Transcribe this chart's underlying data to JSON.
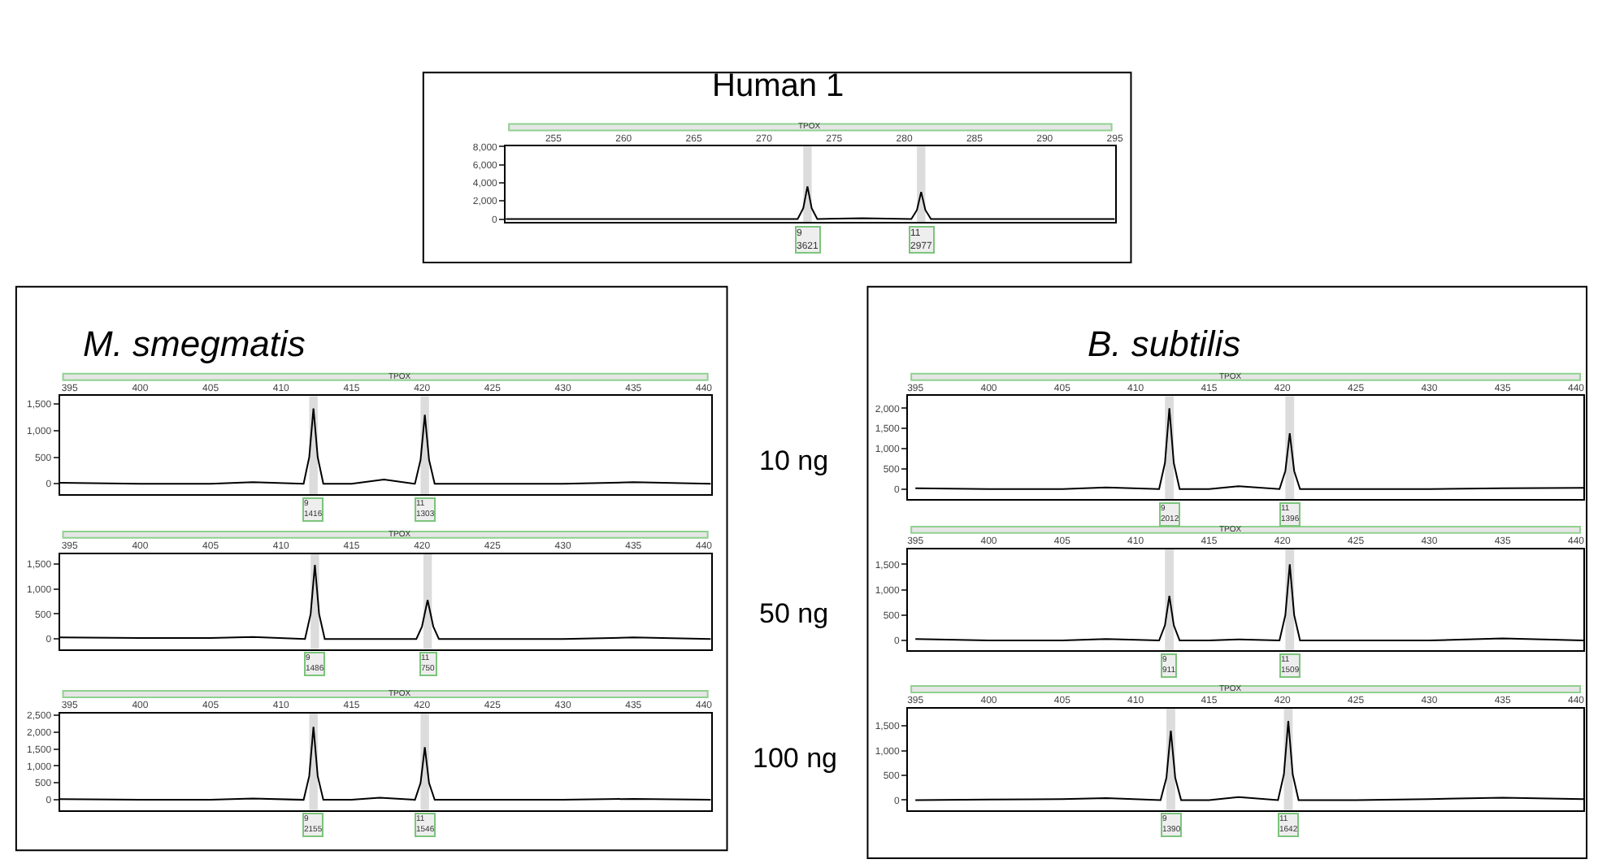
{
  "chart_data": [
    {
      "type": "line",
      "title": "Human 1",
      "x": [
        251.6,
        260,
        270,
        272.4,
        272.8,
        273.1,
        273.4,
        273.8,
        277,
        280.5,
        280.9,
        281.2,
        281.5,
        281.9,
        290,
        295
      ],
      "series": [
        {
          "color": "#000000",
          "values": [
            0,
            0,
            0,
            0,
            1200,
            3600,
            1200,
            0,
            100,
            0,
            1000,
            3000,
            1000,
            0,
            0,
            0
          ]
        }
      ],
      "xlim": [
        251.6,
        295
      ],
      "xticks": [
        255,
        260,
        265,
        270,
        275,
        280,
        285,
        290,
        295
      ],
      "ylim": [
        -350,
        8000
      ],
      "yticks": [
        {
          "value": 0,
          "label": "0"
        },
        {
          "value": 2000,
          "label": "2,000"
        },
        {
          "value": 4000,
          "label": "4,000"
        },
        {
          "value": 6000,
          "label": "6,000"
        },
        {
          "value": 8000,
          "label": "8,000"
        }
      ],
      "annotations": [
        "TPOX",
        {
          "text": "9\n3621",
          "x": 273.1
        },
        {
          "text": "11\n2977",
          "x": 281.2
        }
      ],
      "bands": [
        {
          "axis": "x",
          "from": 272.8,
          "to": 273.4,
          "color": "#dcdcdc"
        },
        {
          "axis": "x",
          "from": 280.9,
          "to": 281.5,
          "color": "#dcdcdc"
        }
      ],
      "grid": false
    },
    {
      "type": "line",
      "title": "M. smegmatis",
      "x": [
        394.3,
        400,
        405,
        408,
        411.6,
        412.0,
        412.3,
        412.6,
        413.0,
        415,
        417.3,
        419.5,
        419.9,
        420.2,
        420.5,
        420.9,
        425,
        430,
        435,
        440.5
      ],
      "series": [
        {
          "color": "#000000",
          "values": [
            20,
            0,
            0,
            30,
            0,
            500,
            1420,
            500,
            0,
            0,
            80,
            0,
            450,
            1300,
            450,
            0,
            0,
            0,
            30,
            0
          ]
        }
      ],
      "xlim": [
        394.3,
        440.5
      ],
      "xticks": [
        395,
        400,
        405,
        410,
        415,
        420,
        425,
        430,
        435,
        440
      ],
      "ylim": [
        -200,
        1650
      ],
      "yticks": [
        {
          "value": 0,
          "label": "0"
        },
        {
          "value": 500,
          "label": "500"
        },
        {
          "value": 1000,
          "label": "1,000"
        },
        {
          "value": 1500,
          "label": "1,500"
        }
      ],
      "annotations": [
        "TPOX",
        "10 ng",
        {
          "text": "9\n1416",
          "x": 412.3
        },
        {
          "text": "11\n1303",
          "x": 420.2
        }
      ],
      "bands": [
        {
          "axis": "x",
          "from": 412.0,
          "to": 412.6,
          "color": "#dcdcdc"
        },
        {
          "axis": "x",
          "from": 419.9,
          "to": 420.5,
          "color": "#dcdcdc"
        }
      ],
      "grid": false
    },
    {
      "type": "line",
      "x": [
        394.3,
        400,
        405,
        408,
        411.7,
        412.1,
        412.4,
        412.7,
        413.1,
        415,
        417,
        419.6,
        420.0,
        420.4,
        420.8,
        421.2,
        425,
        430,
        435,
        440.5
      ],
      "series": [
        {
          "color": "#000000",
          "values": [
            30,
            20,
            20,
            40,
            0,
            500,
            1480,
            500,
            0,
            0,
            0,
            0,
            250,
            780,
            250,
            0,
            0,
            0,
            30,
            0
          ]
        }
      ],
      "xlim": [
        394.3,
        440.5
      ],
      "xticks": [
        395,
        400,
        405,
        410,
        415,
        420,
        425,
        430,
        435,
        440
      ],
      "ylim": [
        -200,
        1700
      ],
      "yticks": [
        {
          "value": 0,
          "label": "0"
        },
        {
          "value": 500,
          "label": "500"
        },
        {
          "value": 1000,
          "label": "1,000"
        },
        {
          "value": 1500,
          "label": "1,500"
        }
      ],
      "annotations": [
        "TPOX",
        "50 ng",
        {
          "text": "9\n1486",
          "x": 412.4
        },
        {
          "text": "11\n750",
          "x": 420.4
        }
      ],
      "bands": [
        {
          "axis": "x",
          "from": 412.1,
          "to": 412.7,
          "color": "#dcdcdc"
        },
        {
          "axis": "x",
          "from": 420.1,
          "to": 420.7,
          "color": "#dcdcdc"
        }
      ],
      "grid": false
    },
    {
      "type": "line",
      "x": [
        394.3,
        400,
        405,
        408,
        411.6,
        412.0,
        412.3,
        412.6,
        413.0,
        415,
        417,
        419.5,
        419.9,
        420.2,
        420.5,
        420.9,
        425,
        430,
        435,
        440.5
      ],
      "series": [
        {
          "color": "#000000",
          "values": [
            20,
            0,
            0,
            40,
            0,
            700,
            2150,
            700,
            0,
            0,
            60,
            0,
            500,
            1550,
            500,
            0,
            0,
            0,
            30,
            0
          ]
        }
      ],
      "xlim": [
        394.3,
        440.5
      ],
      "xticks": [
        395,
        400,
        405,
        410,
        415,
        420,
        425,
        430,
        435,
        440
      ],
      "ylim": [
        -300,
        2550
      ],
      "yticks": [
        {
          "value": 0,
          "label": "0"
        },
        {
          "value": 500,
          "label": "500"
        },
        {
          "value": 1000,
          "label": "1,000"
        },
        {
          "value": 1500,
          "label": "1,500"
        },
        {
          "value": 2000,
          "label": "2,000"
        },
        {
          "value": 2500,
          "label": "2,500"
        }
      ],
      "annotations": [
        "TPOX",
        "100 ng",
        {
          "text": "9\n2155",
          "x": 412.3
        },
        {
          "text": "11\n1546",
          "x": 420.2
        }
      ],
      "bands": [
        {
          "axis": "x",
          "from": 412.0,
          "to": 412.6,
          "color": "#dcdcdc"
        },
        {
          "axis": "x",
          "from": 419.9,
          "to": 420.5,
          "color": "#dcdcdc"
        }
      ],
      "grid": false
    },
    {
      "type": "line",
      "title": "B. subtilis",
      "x": [
        395,
        400,
        405,
        408,
        411.6,
        412.0,
        412.3,
        412.6,
        413.0,
        415,
        417,
        419.8,
        420.2,
        420.5,
        420.8,
        421.2,
        425,
        430,
        435,
        440.5
      ],
      "series": [
        {
          "color": "#000000",
          "values": [
            20,
            0,
            0,
            40,
            0,
            650,
            2000,
            650,
            0,
            0,
            70,
            0,
            450,
            1380,
            450,
            0,
            0,
            0,
            20,
            30
          ]
        }
      ],
      "xlim": [
        394.5,
        440.5
      ],
      "xticks": [
        395,
        400,
        405,
        410,
        415,
        420,
        425,
        430,
        435,
        440
      ],
      "ylim": [
        -250,
        2300
      ],
      "yticks": [
        {
          "value": 0,
          "label": "0"
        },
        {
          "value": 500,
          "label": "500"
        },
        {
          "value": 1000,
          "label": "1,000"
        },
        {
          "value": 1500,
          "label": "1,500"
        },
        {
          "value": 2000,
          "label": "2,000"
        }
      ],
      "annotations": [
        "TPOX",
        {
          "text": "9\n2012",
          "x": 412.3
        },
        {
          "text": "11\n1396",
          "x": 420.5
        }
      ],
      "bands": [
        {
          "axis": "x",
          "from": 412.0,
          "to": 412.6,
          "color": "#dcdcdc"
        },
        {
          "axis": "x",
          "from": 420.2,
          "to": 420.8,
          "color": "#dcdcdc"
        }
      ],
      "grid": false
    },
    {
      "type": "line",
      "x": [
        395,
        400,
        405,
        408,
        411.6,
        412.0,
        412.3,
        412.6,
        413.0,
        415,
        417,
        419.8,
        420.2,
        420.5,
        420.8,
        421.2,
        425,
        430,
        435,
        440.5
      ],
      "series": [
        {
          "color": "#000000",
          "values": [
            30,
            0,
            0,
            30,
            0,
            300,
            880,
            300,
            0,
            0,
            20,
            0,
            500,
            1500,
            500,
            0,
            0,
            0,
            40,
            0
          ]
        }
      ],
      "xlim": [
        394.5,
        440.5
      ],
      "xticks": [
        395,
        400,
        405,
        410,
        415,
        420,
        425,
        430,
        435,
        440
      ],
      "ylim": [
        -200,
        1800
      ],
      "yticks": [
        {
          "value": 0,
          "label": "0"
        },
        {
          "value": 500,
          "label": "500"
        },
        {
          "value": 1000,
          "label": "1,000"
        },
        {
          "value": 1500,
          "label": "1,500"
        }
      ],
      "annotations": [
        "TPOX",
        {
          "text": "9\n911",
          "x": 412.3
        },
        {
          "text": "11\n1509",
          "x": 420.5
        }
      ],
      "bands": [
        {
          "axis": "x",
          "from": 412.0,
          "to": 412.6,
          "color": "#dcdcdc"
        },
        {
          "axis": "x",
          "from": 420.2,
          "to": 420.8,
          "color": "#dcdcdc"
        }
      ],
      "grid": false
    },
    {
      "type": "line",
      "x": [
        395,
        400,
        405,
        408,
        411.7,
        412.1,
        412.4,
        412.7,
        413.1,
        415,
        417,
        419.7,
        420.1,
        420.4,
        420.7,
        421.1,
        425,
        430,
        435,
        440.5
      ],
      "series": [
        {
          "color": "#000000",
          "values": [
            0,
            10,
            20,
            40,
            0,
            450,
            1400,
            450,
            0,
            0,
            60,
            0,
            520,
            1600,
            520,
            0,
            0,
            20,
            50,
            20
          ]
        }
      ],
      "xlim": [
        394.5,
        440.5
      ],
      "xticks": [
        395,
        400,
        405,
        410,
        415,
        420,
        425,
        430,
        435,
        440
      ],
      "ylim": [
        -200,
        1850
      ],
      "yticks": [
        {
          "value": 0,
          "label": "0"
        },
        {
          "value": 500,
          "label": "500"
        },
        {
          "value": 1000,
          "label": "1,000"
        },
        {
          "value": 1500,
          "label": "1,500"
        }
      ],
      "annotations": [
        "TPOX",
        {
          "text": "9\n1390",
          "x": 412.4
        },
        {
          "text": "11\n1642",
          "x": 420.4
        }
      ],
      "bands": [
        {
          "axis": "x",
          "from": 412.1,
          "to": 412.7,
          "color": "#dcdcdc"
        },
        {
          "axis": "x",
          "from": 420.1,
          "to": 420.7,
          "color": "#dcdcdc"
        }
      ],
      "grid": false
    }
  ]
}
